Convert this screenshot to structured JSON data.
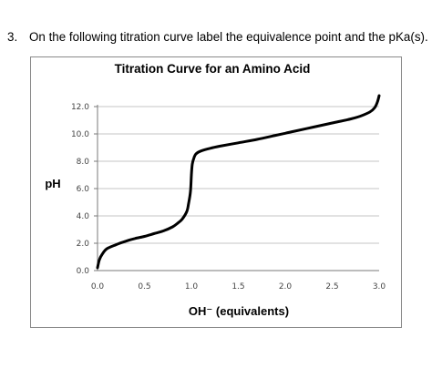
{
  "question": {
    "number": "3.",
    "text": "On the following titration curve label the equivalence point and the pKa(s)."
  },
  "chart_data": {
    "type": "line",
    "title": "Titration Curve for an Amino Acid",
    "xlabel": "OH⁻ (equivalents)",
    "ylabel": "pH",
    "xlim": [
      0,
      3.0
    ],
    "ylim": [
      0,
      12.0
    ],
    "x_ticks": [
      "0.0",
      "0.5",
      "1.0",
      "1.5",
      "2.0",
      "2.5",
      "3.0"
    ],
    "y_ticks": [
      "0.0",
      "2.0",
      "4.0",
      "6.0",
      "8.0",
      "10.0",
      "12.0"
    ],
    "grid": "horizontal",
    "legend": "none",
    "line_color": "#000000",
    "series": [
      {
        "x": [
          0.0,
          0.02,
          0.05,
          0.1,
          0.2,
          0.3,
          0.4,
          0.5,
          0.6,
          0.7,
          0.8,
          0.85,
          0.9,
          0.95,
          0.97,
          0.99,
          1.0,
          1.01,
          1.03,
          1.05,
          1.1,
          1.2,
          1.3,
          1.5,
          1.7,
          1.9,
          2.0,
          2.1,
          2.3,
          2.5,
          2.7,
          2.8,
          2.9,
          2.95,
          2.98,
          3.0
        ],
        "y": [
          0.2,
          0.8,
          1.2,
          1.6,
          1.9,
          2.15,
          2.35,
          2.5,
          2.7,
          2.9,
          3.2,
          3.45,
          3.75,
          4.3,
          4.9,
          5.8,
          7.0,
          7.8,
          8.3,
          8.55,
          8.75,
          8.95,
          9.1,
          9.35,
          9.6,
          9.9,
          10.05,
          10.2,
          10.5,
          10.8,
          11.1,
          11.3,
          11.6,
          11.9,
          12.3,
          12.8
        ]
      }
    ]
  }
}
